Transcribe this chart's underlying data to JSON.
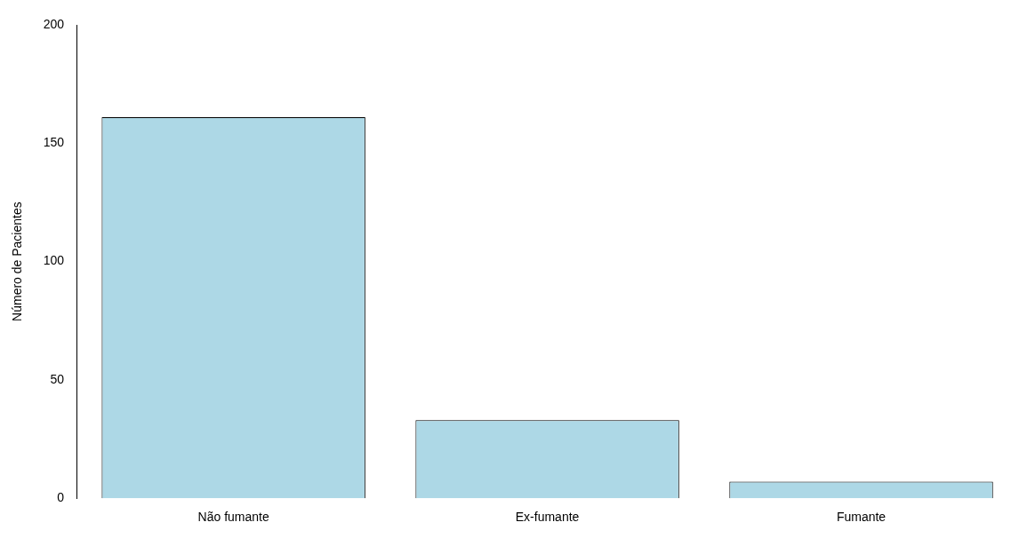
{
  "chart_data": {
    "type": "bar",
    "ylabel": "Número de Pacientes",
    "categories": [
      "Não fumante",
      "Ex-fumante",
      "Fumante"
    ],
    "values": [
      161,
      33,
      7
    ],
    "color": "#add8e6",
    "ylim": [
      0,
      200
    ],
    "yticks": [
      0,
      50,
      100,
      150,
      200
    ],
    "grid": false,
    "legend": false
  }
}
